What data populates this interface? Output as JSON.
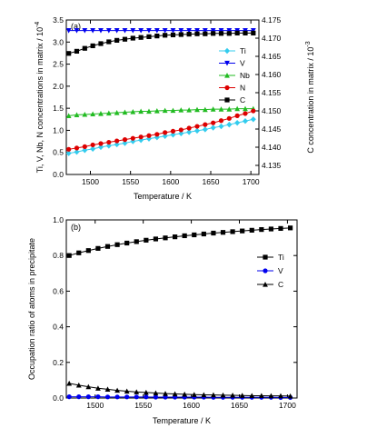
{
  "chart_data": [
    {
      "panel_label": "(a)",
      "type": "line",
      "xlabel": "Temperature / K",
      "ylabel_left": "Ti, V, Nb, N concentrations in matrix / 10",
      "ylabel_left_exp": "-4",
      "ylabel_right": "C concentration in matrix / 10",
      "ylabel_right_exp": "-3",
      "xlim": [
        1470,
        1710
      ],
      "ylim_left": [
        0,
        3.5
      ],
      "ylim_right": [
        4.1325,
        4.175
      ],
      "xticks": [
        1500,
        1550,
        1600,
        1650,
        1700
      ],
      "yticks_left": [
        0.0,
        0.5,
        1.0,
        1.5,
        2.0,
        2.5,
        3.0,
        3.5
      ],
      "yticks_left_labels": [
        "0.0",
        "0.5",
        "1.0",
        "1.5",
        "2.0",
        "2.5",
        "3.0",
        "3.5"
      ],
      "yticks_right": [
        4.135,
        4.14,
        4.145,
        4.15,
        4.155,
        4.16,
        4.165,
        4.17,
        4.175
      ],
      "yticks_right_labels": [
        "4.135",
        "4.140",
        "4.145",
        "4.150",
        "4.155",
        "4.160",
        "4.165",
        "4.170",
        "4.175"
      ],
      "legend_position": "right",
      "x": [
        1473,
        1483,
        1493,
        1503,
        1513,
        1523,
        1533,
        1543,
        1553,
        1563,
        1573,
        1583,
        1593,
        1603,
        1613,
        1623,
        1633,
        1643,
        1653,
        1663,
        1673,
        1683,
        1693,
        1703
      ],
      "series": [
        {
          "name": "Ti",
          "axis": "left",
          "color": "#33ccee",
          "marker": "diamond",
          "values": [
            0.48,
            0.51,
            0.55,
            0.58,
            0.62,
            0.65,
            0.68,
            0.71,
            0.75,
            0.78,
            0.81,
            0.84,
            0.87,
            0.9,
            0.93,
            0.96,
            0.99,
            1.02,
            1.06,
            1.09,
            1.13,
            1.17,
            1.21,
            1.25
          ]
        },
        {
          "name": "V",
          "axis": "left",
          "color": "#0000ee",
          "marker": "triangle-down",
          "values": [
            3.26,
            3.26,
            3.26,
            3.26,
            3.26,
            3.26,
            3.26,
            3.26,
            3.26,
            3.26,
            3.26,
            3.26,
            3.26,
            3.26,
            3.26,
            3.26,
            3.26,
            3.26,
            3.26,
            3.26,
            3.26,
            3.26,
            3.26,
            3.26
          ]
        },
        {
          "name": "Nb",
          "axis": "left",
          "color": "#22bb22",
          "marker": "triangle-up",
          "values": [
            1.33,
            1.35,
            1.36,
            1.37,
            1.38,
            1.39,
            1.4,
            1.41,
            1.42,
            1.43,
            1.43,
            1.44,
            1.45,
            1.45,
            1.46,
            1.46,
            1.47,
            1.47,
            1.48,
            1.48,
            1.48,
            1.49,
            1.49,
            1.49
          ]
        },
        {
          "name": "N",
          "axis": "left",
          "color": "#dd0000",
          "marker": "circle",
          "values": [
            0.57,
            0.6,
            0.63,
            0.67,
            0.7,
            0.73,
            0.76,
            0.79,
            0.82,
            0.85,
            0.88,
            0.91,
            0.95,
            0.98,
            1.01,
            1.05,
            1.09,
            1.13,
            1.17,
            1.22,
            1.27,
            1.33,
            1.38,
            1.44
          ]
        },
        {
          "name": "C",
          "axis": "right",
          "color": "#000000",
          "marker": "square",
          "values": [
            4.1658,
            4.1664,
            4.1672,
            4.1679,
            4.1685,
            4.169,
            4.1694,
            4.1697,
            4.17,
            4.1702,
            4.1704,
            4.1706,
            4.1708,
            4.1709,
            4.171,
            4.1711,
            4.1712,
            4.1712,
            4.1713,
            4.1713,
            4.1713,
            4.1714,
            4.1714,
            4.1714
          ]
        }
      ]
    },
    {
      "panel_label": "(b)",
      "type": "line",
      "xlabel": "Temperature / K",
      "ylabel": "Occupation ratio of atoms in precipitate",
      "xlim": [
        1470,
        1710
      ],
      "ylim": [
        0,
        1.0
      ],
      "xticks": [
        1500,
        1550,
        1600,
        1650,
        1700
      ],
      "yticks": [
        0.0,
        0.2,
        0.4,
        0.6,
        0.8,
        1.0
      ],
      "yticks_labels": [
        "0.0",
        "0.2",
        "0.4",
        "0.6",
        "0.8",
        "1.0"
      ],
      "legend_position": "right",
      "x": [
        1473,
        1483,
        1493,
        1503,
        1513,
        1523,
        1533,
        1543,
        1553,
        1563,
        1573,
        1583,
        1593,
        1603,
        1613,
        1623,
        1633,
        1643,
        1653,
        1663,
        1673,
        1683,
        1693,
        1703
      ],
      "series": [
        {
          "name": "Ti",
          "color": "#000000",
          "marker": "square",
          "values": [
            0.8,
            0.815,
            0.828,
            0.84,
            0.851,
            0.861,
            0.87,
            0.878,
            0.886,
            0.893,
            0.899,
            0.905,
            0.911,
            0.916,
            0.921,
            0.926,
            0.93,
            0.934,
            0.938,
            0.942,
            0.946,
            0.949,
            0.952,
            0.955
          ]
        },
        {
          "name": "V",
          "color": "#0000ee",
          "marker": "circle",
          "values": [
            0.007,
            0.007,
            0.007,
            0.007,
            0.006,
            0.006,
            0.006,
            0.006,
            0.006,
            0.005,
            0.005,
            0.005,
            0.005,
            0.005,
            0.005,
            0.004,
            0.004,
            0.004,
            0.004,
            0.004,
            0.004,
            0.004,
            0.003,
            0.003
          ]
        },
        {
          "name": "C",
          "color": "#000000",
          "marker": "triangle-up",
          "values": [
            0.082,
            0.072,
            0.063,
            0.055,
            0.049,
            0.043,
            0.038,
            0.034,
            0.031,
            0.028,
            0.025,
            0.023,
            0.021,
            0.019,
            0.018,
            0.017,
            0.016,
            0.015,
            0.014,
            0.013,
            0.013,
            0.012,
            0.012,
            0.011
          ]
        }
      ]
    }
  ]
}
